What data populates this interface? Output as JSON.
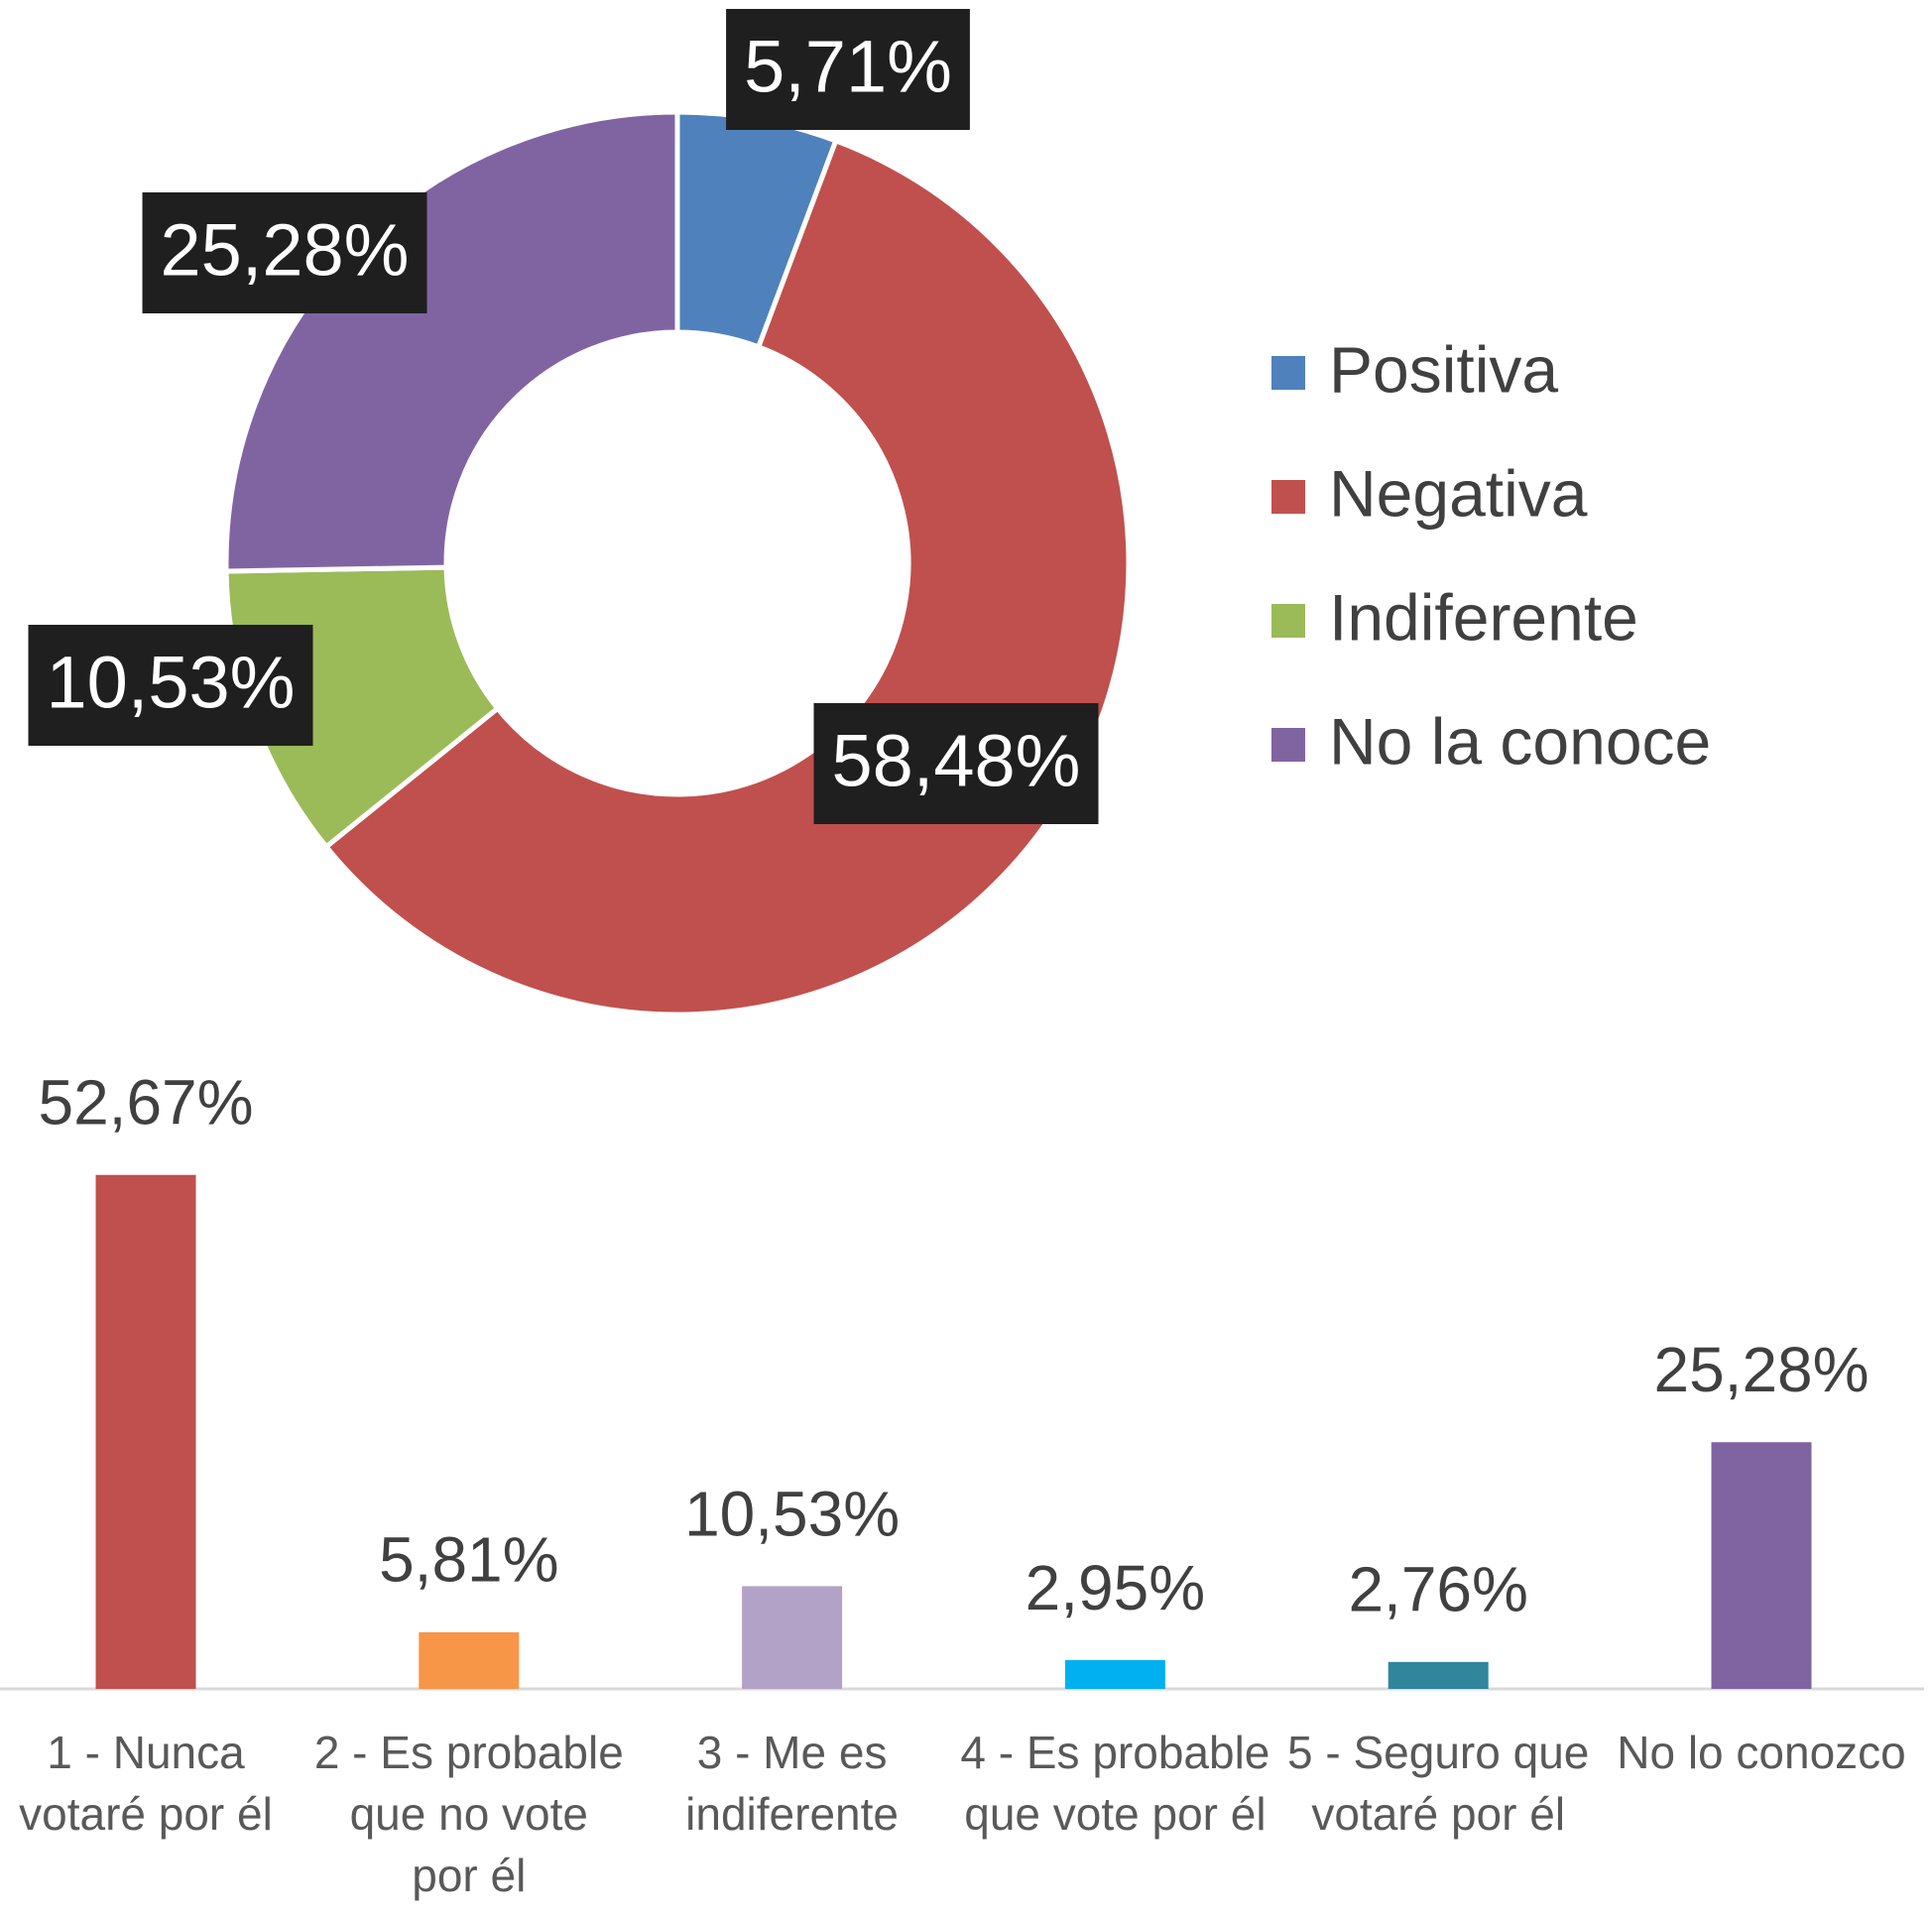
{
  "chart_data": [
    {
      "type": "donut",
      "categories": [
        "Positiva",
        "Negativa",
        "Indiferente",
        "No la conoce"
      ],
      "values": [
        5.71,
        58.48,
        10.53,
        25.28
      ],
      "value_labels": [
        "5,71%",
        "58,48%",
        "10,53%",
        "25,28%"
      ],
      "colors": [
        "#4f81bd",
        "#c0504d",
        "#9bbb59",
        "#8064a2"
      ],
      "legend": "right"
    },
    {
      "type": "bar",
      "categories": [
        "1 - Nunca votaré por él",
        "2 - Es probable que no vote por él",
        "3 - Me es indiferente",
        "4 - Es probable que vote por él",
        "5 - Seguro que votaré por él",
        "No lo conozco"
      ],
      "values": [
        52.67,
        5.81,
        10.53,
        2.95,
        2.76,
        25.28
      ],
      "value_labels": [
        "52,67%",
        "5,81%",
        "10,53%",
        "2,95%",
        "2,76%",
        "25,28%"
      ],
      "colors": [
        "#c0504d",
        "#f79646",
        "#b3a2c7",
        "#00b0f0",
        "#31859c",
        "#8064a2"
      ]
    }
  ]
}
